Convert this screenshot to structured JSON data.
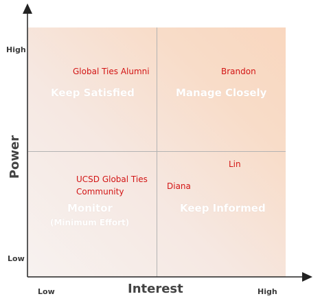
{
  "axes": {
    "x_label": "Interest",
    "y_label": "Power",
    "x_low": "Low",
    "x_high": "High",
    "y_low": "Low",
    "y_high": "High"
  },
  "quadrants": {
    "top_left": "Keep Satisfied",
    "top_right": "Manage Closely",
    "bottom_left": "Monitor",
    "bottom_left_sub": "(Minimum Effort)",
    "bottom_right": "Keep Informed"
  },
  "stakeholders": {
    "global_ties_alumni": "Global Ties Alumni",
    "brandon": "Brandon",
    "lin": "Lin",
    "ucsd_line1": "UCSD Global Ties",
    "ucsd_line2": "Community",
    "diana": "Diana"
  },
  "colors": {
    "stakeholder_text": "#d21414",
    "axis_text": "#444444",
    "grid_tint": "#f9d7bf"
  }
}
